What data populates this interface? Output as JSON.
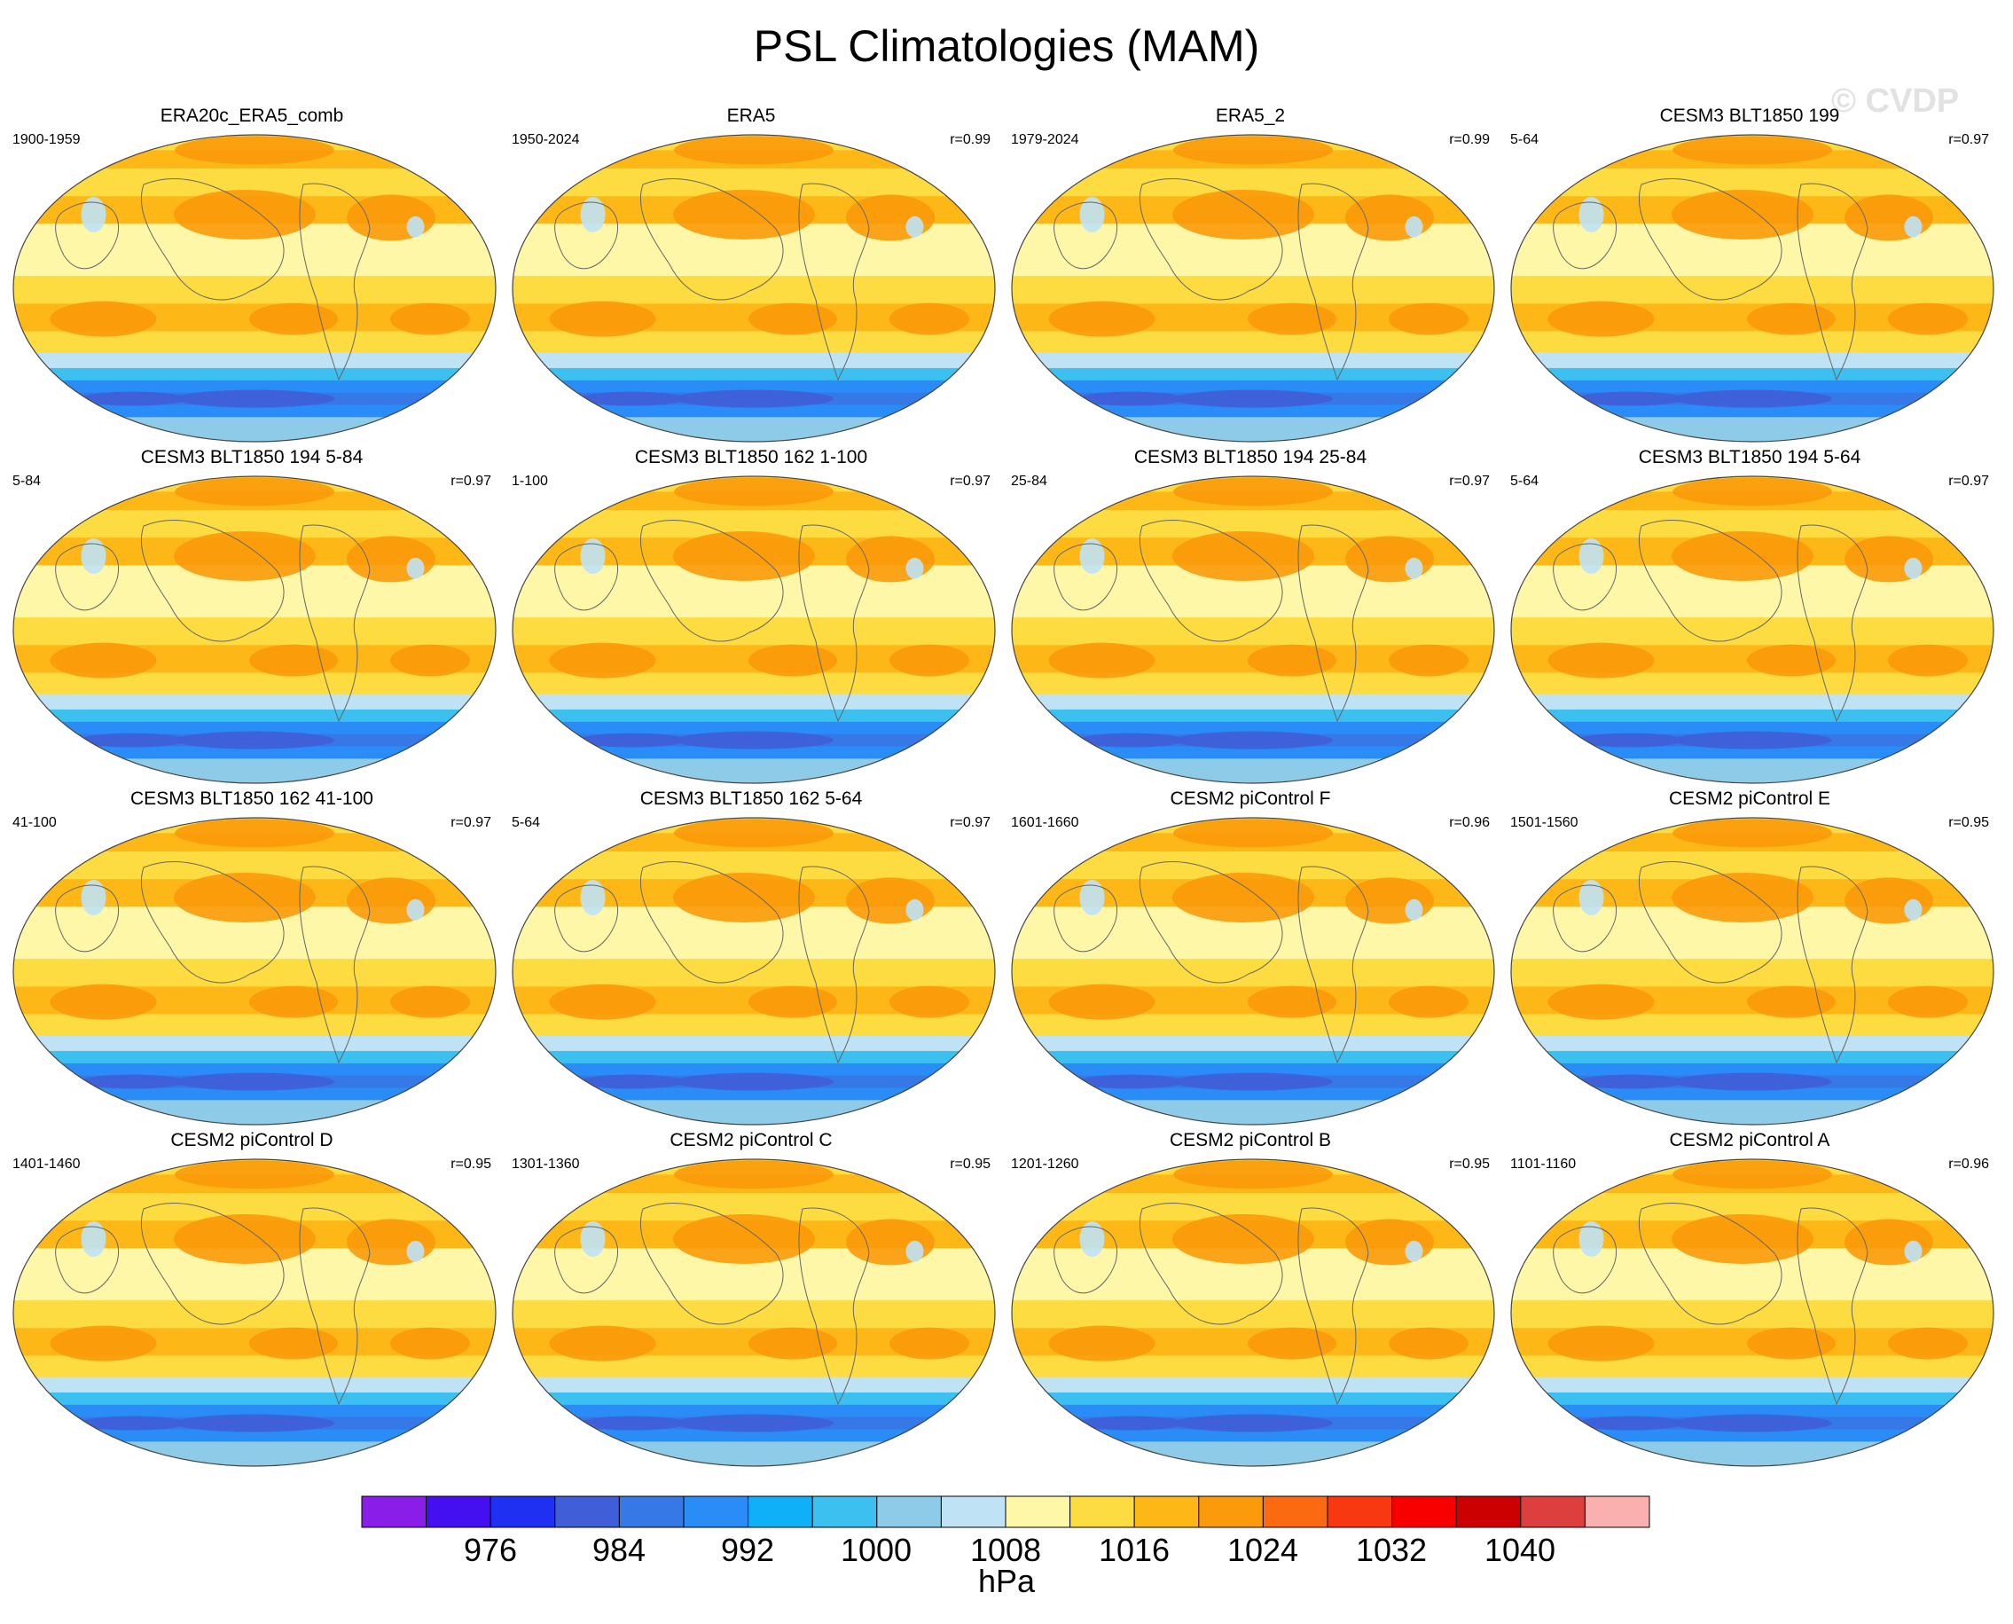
{
  "title": "PSL Climatologies (MAM)",
  "watermark": "© CVDP",
  "chart_data": {
    "type": "heatmap",
    "title": "PSL Climatologies (MAM)",
    "units": "hPa",
    "colorbar": {
      "levels": [
        972,
        976,
        980,
        984,
        988,
        992,
        996,
        1000,
        1004,
        1008,
        1012,
        1016,
        1020,
        1024,
        1028,
        1032,
        1036,
        1040,
        1044
      ],
      "tick_labels": [
        "976",
        "984",
        "992",
        "1000",
        "1008",
        "1016",
        "1024",
        "1032",
        "1040"
      ],
      "colors": [
        "#8b1de8",
        "#4510f0",
        "#1f30f2",
        "#3f5ed8",
        "#3578e6",
        "#2a8cf6",
        "#0fb0f8",
        "#3cc0f0",
        "#8ecbe8",
        "#bfe2f5",
        "#fff7a8",
        "#fddc42",
        "#fdb817",
        "#fb9a0a",
        "#fb6a10",
        "#f83810",
        "#f80000",
        "#cc0000",
        "#dd3e3e",
        "#fbb0b0"
      ]
    },
    "panels": [
      {
        "name": "ERA20c_ERA5_comb",
        "years": "1900-1959",
        "r": ""
      },
      {
        "name": "ERA5",
        "years": "1950-2024",
        "r": "r=0.99"
      },
      {
        "name": "ERA5_2",
        "years": "1979-2024",
        "r": "r=0.99"
      },
      {
        "name": "CESM3 BLT1850 199",
        "years": "5-64",
        "r": "r=0.97"
      },
      {
        "name": "CESM3 BLT1850 194 5-84",
        "years": "5-84",
        "r": "r=0.97"
      },
      {
        "name": "CESM3 BLT1850 162 1-100",
        "years": "1-100",
        "r": "r=0.97"
      },
      {
        "name": "CESM3 BLT1850 194 25-84",
        "years": "25-84",
        "r": "r=0.97"
      },
      {
        "name": "CESM3 BLT1850 194 5-64",
        "years": "5-64",
        "r": "r=0.97"
      },
      {
        "name": "CESM3 BLT1850 162 41-100",
        "years": "41-100",
        "r": "r=0.97"
      },
      {
        "name": "CESM3 BLT1850 162 5-64",
        "years": "5-64",
        "r": "r=0.97"
      },
      {
        "name": "CESM2 piControl F",
        "years": "1601-1660",
        "r": "r=0.96"
      },
      {
        "name": "CESM2 piControl E",
        "years": "1501-1560",
        "r": "r=0.95"
      },
      {
        "name": "CESM2 piControl D",
        "years": "1401-1460",
        "r": "r=0.95"
      },
      {
        "name": "CESM2 piControl C",
        "years": "1301-1360",
        "r": "r=0.95"
      },
      {
        "name": "CESM2 piControl B",
        "years": "1201-1260",
        "r": "r=0.95"
      },
      {
        "name": "CESM2 piControl A",
        "years": "1101-1160",
        "r": "r=0.96"
      }
    ]
  }
}
